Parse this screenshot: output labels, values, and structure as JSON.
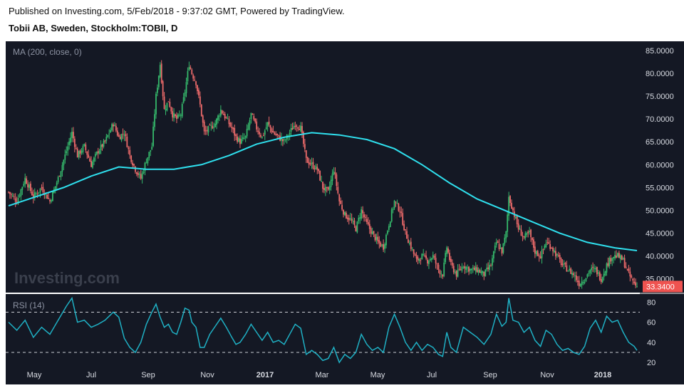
{
  "header": {
    "published": "Published on Investing.com, 5/Feb/2018 - 9:37:02 GMT, Powered by TradingView.",
    "symbol": "Tobii AB, Sweden, Stockholm:TOBII, D"
  },
  "watermark": "Investing.com",
  "colors": {
    "background": "#141824",
    "up": "#35b86b",
    "down": "#ec6a6a",
    "ma": "#2fe0ee",
    "rsi": "#1fb0c4",
    "last_badge": "#ef5350",
    "grid_dash": "#c9ccd2"
  },
  "chart_data": [
    {
      "type": "candlestick",
      "title": "MA (200, close, 0)",
      "ylim": [
        32,
        87
      ],
      "yticks": [
        "85.0000",
        "80.0000",
        "75.0000",
        "70.0000",
        "65.0000",
        "60.0000",
        "55.0000",
        "50.0000",
        "45.0000",
        "40.0000",
        "35.0000"
      ],
      "last_price": "33.3400",
      "xticks": [
        "May",
        "Jul",
        "Sep",
        "Nov",
        "2017",
        "Mar",
        "May",
        "Jul",
        "Sep",
        "Nov",
        "2018"
      ],
      "close_path": [
        [
          0,
          54
        ],
        [
          6,
          52
        ],
        [
          12,
          57
        ],
        [
          18,
          53
        ],
        [
          24,
          55
        ],
        [
          30,
          52
        ],
        [
          36,
          57
        ],
        [
          42,
          63
        ],
        [
          46,
          67
        ],
        [
          50,
          62
        ],
        [
          55,
          64
        ],
        [
          60,
          60
        ],
        [
          65,
          63
        ],
        [
          70,
          65
        ],
        [
          76,
          69
        ],
        [
          80,
          66
        ],
        [
          84,
          67
        ],
        [
          88,
          62
        ],
        [
          92,
          59
        ],
        [
          96,
          57
        ],
        [
          100,
          61
        ],
        [
          104,
          64
        ],
        [
          107,
          75
        ],
        [
          110,
          82
        ],
        [
          113,
          72
        ],
        [
          116,
          74
        ],
        [
          119,
          71
        ],
        [
          122,
          70
        ],
        [
          125,
          71
        ],
        [
          128,
          76
        ],
        [
          131,
          82
        ],
        [
          133,
          80
        ],
        [
          136,
          78
        ],
        [
          139,
          73
        ],
        [
          142,
          67
        ],
        [
          146,
          68
        ],
        [
          150,
          69
        ],
        [
          154,
          72
        ],
        [
          158,
          70
        ],
        [
          162,
          68
        ],
        [
          165,
          66
        ],
        [
          168,
          65
        ],
        [
          172,
          66
        ],
        [
          176,
          71
        ],
        [
          180,
          68
        ],
        [
          184,
          66
        ],
        [
          188,
          69
        ],
        [
          192,
          67
        ],
        [
          196,
          66
        ],
        [
          200,
          65
        ],
        [
          204,
          67
        ],
        [
          208,
          69
        ],
        [
          212,
          68
        ],
        [
          216,
          61
        ],
        [
          220,
          60
        ],
        [
          224,
          59
        ],
        [
          228,
          55
        ],
        [
          232,
          54
        ],
        [
          236,
          59
        ],
        [
          240,
          52
        ],
        [
          244,
          49
        ],
        [
          248,
          48
        ],
        [
          252,
          46
        ],
        [
          256,
          50
        ],
        [
          260,
          47
        ],
        [
          264,
          45
        ],
        [
          268,
          43
        ],
        [
          272,
          42
        ],
        [
          276,
          47
        ],
        [
          280,
          52
        ],
        [
          284,
          50
        ],
        [
          288,
          45
        ],
        [
          292,
          42
        ],
        [
          296,
          39
        ],
        [
          300,
          40
        ],
        [
          304,
          39
        ],
        [
          308,
          40
        ],
        [
          312,
          37
        ],
        [
          315,
          36
        ],
        [
          318,
          42
        ],
        [
          321,
          38
        ],
        [
          325,
          36
        ],
        [
          330,
          38
        ],
        [
          335,
          37
        ],
        [
          340,
          37
        ],
        [
          345,
          36
        ],
        [
          350,
          38
        ],
        [
          354,
          43
        ],
        [
          358,
          41
        ],
        [
          361,
          45
        ],
        [
          363,
          53
        ],
        [
          366,
          50
        ],
        [
          370,
          46
        ],
        [
          374,
          44
        ],
        [
          378,
          45
        ],
        [
          382,
          41
        ],
        [
          386,
          40
        ],
        [
          390,
          43
        ],
        [
          394,
          42
        ],
        [
          398,
          40
        ],
        [
          402,
          38
        ],
        [
          406,
          37
        ],
        [
          410,
          36
        ],
        [
          414,
          34
        ],
        [
          418,
          35
        ],
        [
          422,
          37
        ],
        [
          426,
          37
        ],
        [
          430,
          35
        ],
        [
          434,
          38
        ],
        [
          438,
          40
        ],
        [
          442,
          40
        ],
        [
          446,
          39
        ],
        [
          450,
          36
        ],
        [
          454,
          34
        ],
        [
          456,
          33.34
        ]
      ],
      "ma200": [
        [
          0,
          51
        ],
        [
          20,
          53
        ],
        [
          40,
          55
        ],
        [
          60,
          57.5
        ],
        [
          80,
          59.5
        ],
        [
          100,
          59
        ],
        [
          120,
          59
        ],
        [
          140,
          60
        ],
        [
          160,
          62
        ],
        [
          180,
          64.5
        ],
        [
          200,
          66
        ],
        [
          220,
          67
        ],
        [
          240,
          66.5
        ],
        [
          260,
          65.5
        ],
        [
          280,
          63.5
        ],
        [
          300,
          60
        ],
        [
          320,
          56
        ],
        [
          340,
          52.5
        ],
        [
          360,
          50
        ],
        [
          380,
          47.5
        ],
        [
          400,
          45
        ],
        [
          420,
          43
        ],
        [
          440,
          41.8
        ],
        [
          456,
          41.2
        ]
      ]
    },
    {
      "type": "line",
      "title": "RSI (14)",
      "ylim": [
        18,
        88
      ],
      "yticks": [
        "80",
        "60",
        "40",
        "20"
      ],
      "bands": [
        70,
        30
      ],
      "rsi": [
        [
          0,
          60
        ],
        [
          6,
          52
        ],
        [
          12,
          62
        ],
        [
          18,
          45
        ],
        [
          24,
          55
        ],
        [
          30,
          48
        ],
        [
          36,
          62
        ],
        [
          42,
          76
        ],
        [
          46,
          84
        ],
        [
          50,
          60
        ],
        [
          55,
          62
        ],
        [
          60,
          55
        ],
        [
          65,
          58
        ],
        [
          70,
          62
        ],
        [
          76,
          70
        ],
        [
          80,
          65
        ],
        [
          84,
          44
        ],
        [
          88,
          35
        ],
        [
          92,
          30
        ],
        [
          96,
          40
        ],
        [
          100,
          58
        ],
        [
          104,
          70
        ],
        [
          107,
          78
        ],
        [
          110,
          65
        ],
        [
          113,
          55
        ],
        [
          116,
          58
        ],
        [
          119,
          50
        ],
        [
          122,
          48
        ],
        [
          125,
          60
        ],
        [
          128,
          74
        ],
        [
          131,
          72
        ],
        [
          133,
          60
        ],
        [
          136,
          55
        ],
        [
          139,
          35
        ],
        [
          142,
          35
        ],
        [
          146,
          48
        ],
        [
          150,
          56
        ],
        [
          154,
          64
        ],
        [
          158,
          55
        ],
        [
          162,
          45
        ],
        [
          165,
          38
        ],
        [
          168,
          40
        ],
        [
          172,
          48
        ],
        [
          176,
          58
        ],
        [
          180,
          50
        ],
        [
          184,
          42
        ],
        [
          188,
          50
        ],
        [
          192,
          40
        ],
        [
          196,
          42
        ],
        [
          200,
          38
        ],
        [
          204,
          48
        ],
        [
          208,
          58
        ],
        [
          212,
          54
        ],
        [
          216,
          28
        ],
        [
          220,
          32
        ],
        [
          224,
          28
        ],
        [
          228,
          22
        ],
        [
          232,
          24
        ],
        [
          236,
          35
        ],
        [
          240,
          20
        ],
        [
          244,
          28
        ],
        [
          248,
          24
        ],
        [
          252,
          30
        ],
        [
          256,
          48
        ],
        [
          260,
          38
        ],
        [
          264,
          32
        ],
        [
          268,
          35
        ],
        [
          272,
          30
        ],
        [
          276,
          55
        ],
        [
          280,
          68
        ],
        [
          284,
          55
        ],
        [
          288,
          40
        ],
        [
          292,
          32
        ],
        [
          296,
          40
        ],
        [
          300,
          32
        ],
        [
          304,
          38
        ],
        [
          308,
          35
        ],
        [
          312,
          28
        ],
        [
          315,
          26
        ],
        [
          318,
          50
        ],
        [
          321,
          35
        ],
        [
          325,
          30
        ],
        [
          330,
          55
        ],
        [
          335,
          50
        ],
        [
          340,
          45
        ],
        [
          345,
          38
        ],
        [
          350,
          48
        ],
        [
          354,
          68
        ],
        [
          358,
          56
        ],
        [
          361,
          60
        ],
        [
          363,
          84
        ],
        [
          366,
          62
        ],
        [
          370,
          60
        ],
        [
          374,
          50
        ],
        [
          378,
          55
        ],
        [
          382,
          42
        ],
        [
          386,
          36
        ],
        [
          390,
          52
        ],
        [
          394,
          48
        ],
        [
          398,
          38
        ],
        [
          402,
          32
        ],
        [
          406,
          34
        ],
        [
          410,
          30
        ],
        [
          414,
          28
        ],
        [
          418,
          36
        ],
        [
          422,
          54
        ],
        [
          426,
          62
        ],
        [
          430,
          50
        ],
        [
          434,
          66
        ],
        [
          438,
          60
        ],
        [
          442,
          62
        ],
        [
          446,
          50
        ],
        [
          450,
          40
        ],
        [
          454,
          36
        ],
        [
          456,
          32
        ]
      ]
    }
  ]
}
